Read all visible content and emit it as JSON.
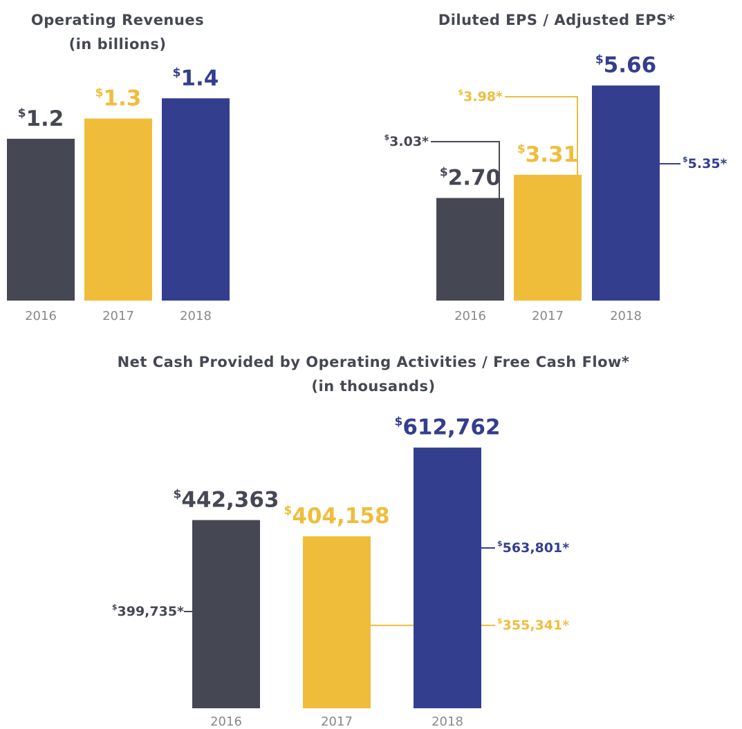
{
  "chart_data": [
    {
      "type": "bar",
      "title": "Operating Revenues",
      "subtitle": "(in billions)",
      "categories": [
        "2016",
        "2017",
        "2018"
      ],
      "values": [
        1.2,
        1.3,
        1.4
      ],
      "value_labels": [
        "$1.2",
        "$1.3",
        "$1.4"
      ],
      "colors": [
        "#454852",
        "#f0bd3b",
        "#343e8f"
      ],
      "ylim": [
        0.4,
        1.5
      ]
    },
    {
      "type": "bar",
      "title": "Diluted EPS / Adjusted EPS*",
      "categories": [
        "2016",
        "2017",
        "2018"
      ],
      "values": [
        2.7,
        3.31,
        5.66
      ],
      "value_labels": [
        "$2.70",
        "$3.31",
        "$5.66"
      ],
      "adjusted_values": [
        3.03,
        3.98,
        5.35
      ],
      "adjusted_labels": [
        "$3.03*",
        "$3.98*",
        "$5.35*"
      ],
      "colors": [
        "#454852",
        "#f0bd3b",
        "#343e8f"
      ],
      "ylim": [
        0,
        6
      ]
    },
    {
      "type": "bar",
      "title": "Net Cash Provided by Operating Activities / Free Cash Flow*",
      "subtitle": "(in thousands)",
      "categories": [
        "2016",
        "2017",
        "2018"
      ],
      "values": [
        442363,
        404158,
        612762
      ],
      "value_labels": [
        "$442,363",
        "$404,158",
        "$612,762"
      ],
      "adjusted_values": [
        399735,
        355341,
        563801
      ],
      "adjusted_labels": [
        "$399,735*",
        "$355,341*",
        "$563,801*"
      ],
      "colors": [
        "#454852",
        "#f0bd3b",
        "#343e8f"
      ],
      "ylim": [
        0,
        700000
      ]
    }
  ]
}
